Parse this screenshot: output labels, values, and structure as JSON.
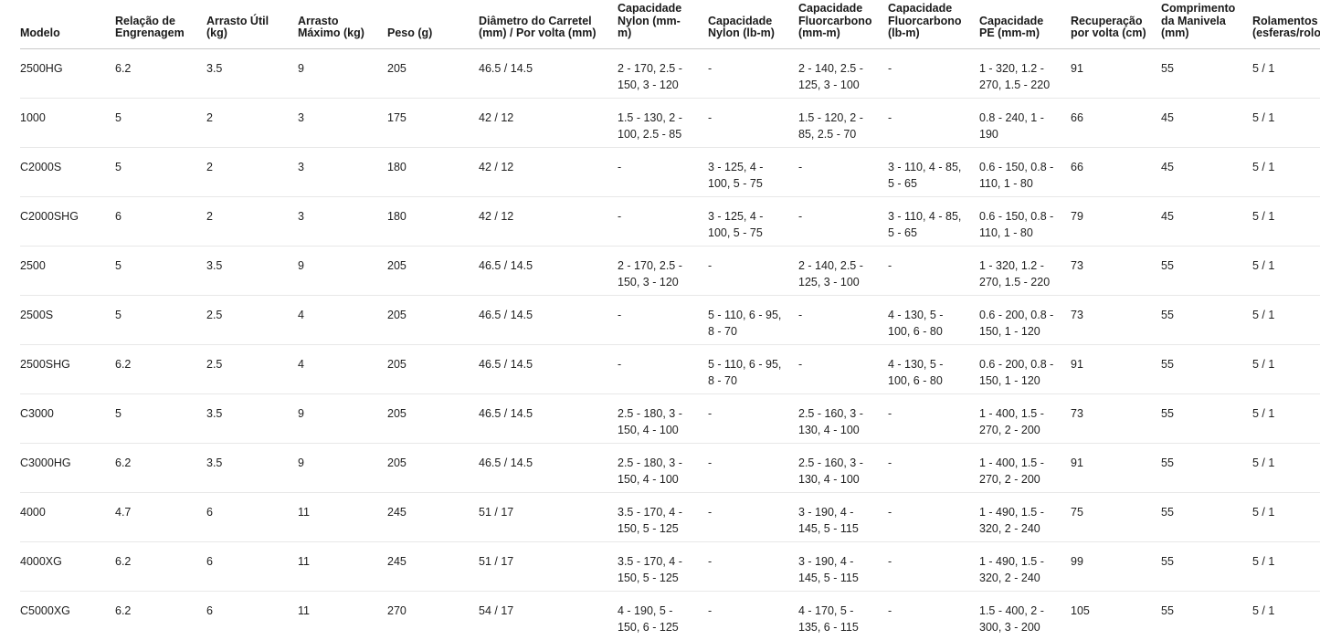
{
  "colors": {
    "background": "#ffffff",
    "header_text": "#1a1a1a",
    "body_text": "#212121",
    "header_divider": "#c9c9c9",
    "row_divider": "#e8e8e8"
  },
  "table": {
    "columns": [
      "Modelo",
      "Relação de Engrenagem",
      "Arrasto Útil (kg)",
      "Arrasto Máximo (kg)",
      "Peso (g)",
      "Diâmetro do Carretel (mm) / Por volta (mm)",
      "Capacidade Nylon (mm-m)",
      "Capacidade Nylon (lb-m)",
      "Capacidade Fluorcarbono (mm-m)",
      "Capacidade Fluorcarbono (lb-m)",
      "Capacidade PE (mm-m)",
      "Recuperação por volta (cm)",
      "Comprimento da Manivela (mm)",
      "Rolamentos (esferas/rolos)"
    ],
    "rows": [
      [
        "2500HG",
        "6.2",
        "3.5",
        "9",
        "205",
        "46.5 / 14.5",
        "2 - 170, 2.5 - 150, 3 - 120",
        "-",
        "2 - 140, 2.5 - 125, 3 - 100",
        "-",
        "1 - 320, 1.2 - 270, 1.5 - 220",
        "91",
        "55",
        "5 / 1"
      ],
      [
        "1000",
        "5",
        "2",
        "3",
        "175",
        "42 / 12",
        "1.5 - 130, 2 - 100, 2.5 - 85",
        "-",
        "1.5 - 120, 2 - 85, 2.5 - 70",
        "-",
        "0.8 - 240, 1 - 190",
        "66",
        "45",
        "5 / 1"
      ],
      [
        "C2000S",
        "5",
        "2",
        "3",
        "180",
        "42 / 12",
        "-",
        "3 - 125, 4 - 100, 5 - 75",
        "-",
        "3 - 110, 4 - 85, 5 - 65",
        "0.6 - 150, 0.8 - 110, 1 - 80",
        "66",
        "45",
        "5 / 1"
      ],
      [
        "C2000SHG",
        "6",
        "2",
        "3",
        "180",
        "42 / 12",
        "-",
        "3 - 125, 4 - 100, 5 - 75",
        "-",
        "3 - 110, 4 - 85, 5 - 65",
        "0.6 - 150, 0.8 - 110, 1 - 80",
        "79",
        "45",
        "5 / 1"
      ],
      [
        "2500",
        "5",
        "3.5",
        "9",
        "205",
        "46.5 / 14.5",
        "2 - 170, 2.5 - 150, 3 - 120",
        "-",
        "2 - 140, 2.5 - 125, 3 - 100",
        "-",
        "1 - 320, 1.2 - 270, 1.5 - 220",
        "73",
        "55",
        "5 / 1"
      ],
      [
        "2500S",
        "5",
        "2.5",
        "4",
        "205",
        "46.5 / 14.5",
        "-",
        "5 - 110, 6 - 95, 8 - 70",
        "-",
        "4 - 130, 5 - 100, 6 - 80",
        "0.6 - 200, 0.8 - 150, 1 - 120",
        "73",
        "55",
        "5 / 1"
      ],
      [
        "2500SHG",
        "6.2",
        "2.5",
        "4",
        "205",
        "46.5 / 14.5",
        "-",
        "5 - 110, 6 - 95, 8 - 70",
        "-",
        "4 - 130, 5 - 100, 6 - 80",
        "0.6 - 200, 0.8 - 150, 1 - 120",
        "91",
        "55",
        "5 / 1"
      ],
      [
        "C3000",
        "5",
        "3.5",
        "9",
        "205",
        "46.5 / 14.5",
        "2.5 - 180, 3 - 150, 4 - 100",
        "-",
        "2.5 - 160, 3 - 130, 4 - 100",
        "-",
        "1 - 400, 1.5 - 270, 2 - 200",
        "73",
        "55",
        "5 / 1"
      ],
      [
        "C3000HG",
        "6.2",
        "3.5",
        "9",
        "205",
        "46.5 / 14.5",
        "2.5 - 180, 3 - 150, 4 - 100",
        "-",
        "2.5 - 160, 3 - 130, 4 - 100",
        "-",
        "1 - 400, 1.5 - 270, 2 - 200",
        "91",
        "55",
        "5 / 1"
      ],
      [
        "4000",
        "4.7",
        "6",
        "11",
        "245",
        "51 / 17",
        "3.5 - 170, 4 - 150, 5 - 125",
        "-",
        "3 - 190, 4 - 145, 5 - 115",
        "-",
        "1 - 490, 1.5 - 320, 2 - 240",
        "75",
        "55",
        "5 / 1"
      ],
      [
        "4000XG",
        "6.2",
        "6",
        "11",
        "245",
        "51 / 17",
        "3.5 - 170, 4 - 150, 5 - 125",
        "-",
        "3 - 190, 4 - 145, 5 - 115",
        "-",
        "1 - 490, 1.5 - 320, 2 - 240",
        "99",
        "55",
        "5 / 1"
      ],
      [
        "C5000XG",
        "6.2",
        "6",
        "11",
        "270",
        "54 / 17",
        "4 - 190, 5 - 150, 6 - 125",
        "-",
        "4 - 170, 5 - 135, 6 - 115",
        "-",
        "1.5 - 400, 2 - 300, 3 - 200",
        "105",
        "55",
        "5 / 1"
      ]
    ]
  }
}
